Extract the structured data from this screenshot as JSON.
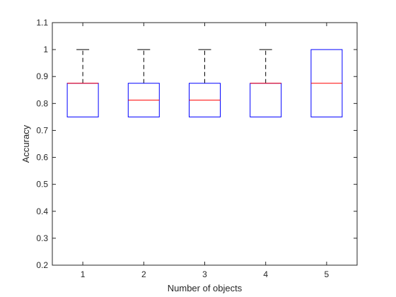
{
  "chart_data": {
    "type": "box",
    "xlabel": "Number of objects",
    "ylabel": "Accuracy",
    "ylim": [
      0.2,
      1.1
    ],
    "xlim": [
      0.5,
      5.5
    ],
    "yticks": [
      0.2,
      0.3,
      0.4,
      0.5,
      0.6,
      0.7,
      0.8,
      0.9,
      1,
      1.1
    ],
    "ytick_labels": [
      "0.2",
      "0.3",
      "0.4",
      "0.5",
      "0.6",
      "0.7",
      "0.8",
      "0.9",
      "1",
      "1.1"
    ],
    "xticks": [
      1,
      2,
      3,
      4,
      5
    ],
    "xtick_labels": [
      "1",
      "2",
      "3",
      "4",
      "5"
    ],
    "grid": false,
    "colors": {
      "box": "#0000ff",
      "median": "#ff0000",
      "whisker": "#000000",
      "axis": "#262626"
    },
    "boxes": [
      {
        "category": "1",
        "min": 0.75,
        "q1": 0.75,
        "median": 0.875,
        "q3": 0.875,
        "max": 1.0
      },
      {
        "category": "2",
        "min": 0.75,
        "q1": 0.75,
        "median": 0.8125,
        "q3": 0.875,
        "max": 1.0
      },
      {
        "category": "3",
        "min": 0.75,
        "q1": 0.75,
        "median": 0.8125,
        "q3": 0.875,
        "max": 1.0
      },
      {
        "category": "4",
        "min": 0.75,
        "q1": 0.75,
        "median": 0.875,
        "q3": 0.875,
        "max": 1.0
      },
      {
        "category": "5",
        "min": 0.75,
        "q1": 0.75,
        "median": 0.875,
        "q3": 1.0,
        "max": 1.0
      }
    ]
  }
}
